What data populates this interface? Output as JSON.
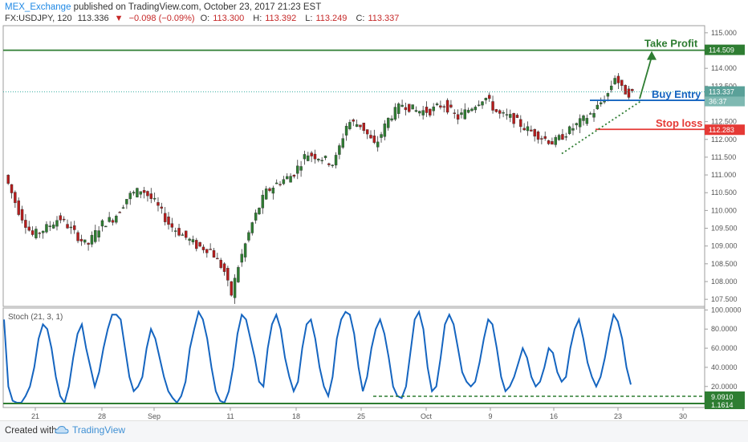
{
  "header": {
    "author": "MEX_Exchange",
    "published": "published on TradingView.com, October 23, 2017 21:23 EST",
    "symbol": "FX:USDJPY, 120",
    "last": "113.336",
    "change_arrow": "▼",
    "change": "−0.098 (−0.09%)",
    "o_label": "O:",
    "o": "113.300",
    "h_label": "H:",
    "h": "113.392",
    "l_label": "L:",
    "l": "113.249",
    "c_label": "C:",
    "c": "113.337"
  },
  "footer": {
    "created": "Created with",
    "brand": "TradingView",
    "logo_icon": "tradingview-cloud-icon"
  },
  "colors": {
    "up": "#26a69a",
    "down": "#ef5350",
    "candle_up": "#2e7d32",
    "candle_down": "#b71c1c",
    "green_line": "#2e7d32",
    "blue_line": "#1565c0",
    "red_line": "#e53935",
    "stoch": "#1565c0"
  },
  "chart_data": [
    {
      "type": "candlestick",
      "symbol": "FX:USDJPY",
      "interval": "120",
      "x_ticks": [
        "21",
        "28",
        "Sep",
        "11",
        "18",
        "25",
        "Oct",
        "9",
        "16",
        "23",
        "30"
      ],
      "y_ticks": [
        "115.000",
        "114.500",
        "114.000",
        "113.500",
        "113.000",
        "112.500",
        "112.000",
        "111.500",
        "111.000",
        "110.500",
        "110.000",
        "109.500",
        "109.000",
        "108.500",
        "108.000",
        "107.500"
      ],
      "ylim": [
        107.3,
        115.2
      ],
      "path_points": [
        [
          0,
          111.0
        ],
        [
          0.02,
          110.0
        ],
        [
          0.04,
          109.3
        ],
        [
          0.06,
          109.5
        ],
        [
          0.08,
          109.8
        ],
        [
          0.1,
          109.4
        ],
        [
          0.12,
          109.0
        ],
        [
          0.14,
          109.6
        ],
        [
          0.16,
          109.8
        ],
        [
          0.18,
          110.4
        ],
        [
          0.2,
          110.6
        ],
        [
          0.22,
          110.2
        ],
        [
          0.24,
          109.6
        ],
        [
          0.26,
          109.3
        ],
        [
          0.28,
          109.0
        ],
        [
          0.3,
          108.9
        ],
        [
          0.32,
          108.3
        ],
        [
          0.33,
          107.6
        ],
        [
          0.34,
          108.4
        ],
        [
          0.36,
          109.6
        ],
        [
          0.38,
          110.5
        ],
        [
          0.4,
          110.8
        ],
        [
          0.42,
          111.0
        ],
        [
          0.44,
          111.6
        ],
        [
          0.46,
          111.5
        ],
        [
          0.48,
          111.3
        ],
        [
          0.5,
          112.5
        ],
        [
          0.52,
          112.4
        ],
        [
          0.54,
          111.8
        ],
        [
          0.56,
          112.6
        ],
        [
          0.58,
          113.0
        ],
        [
          0.6,
          112.8
        ],
        [
          0.62,
          112.8
        ],
        [
          0.64,
          113.0
        ],
        [
          0.66,
          112.6
        ],
        [
          0.68,
          112.9
        ],
        [
          0.7,
          113.2
        ],
        [
          0.72,
          112.7
        ],
        [
          0.74,
          112.6
        ],
        [
          0.76,
          112.3
        ],
        [
          0.78,
          112.1
        ],
        [
          0.8,
          111.9
        ],
        [
          0.82,
          112.2
        ],
        [
          0.84,
          112.5
        ],
        [
          0.86,
          112.8
        ],
        [
          0.88,
          113.3
        ],
        [
          0.89,
          113.8
        ],
        [
          0.9,
          113.4
        ],
        [
          0.91,
          113.3
        ]
      ],
      "price_levels": [
        {
          "label": "Take Profit",
          "value": 114.509,
          "tag": "114.509"
        },
        {
          "label": "Buy Entry",
          "value": 113.1,
          "tag": "36:37"
        },
        {
          "label": "Stop loss",
          "value": 112.283,
          "tag": "112.283"
        }
      ],
      "current_price_tag": "113.337"
    },
    {
      "type": "line",
      "title": "Stoch (21, 3, 1)",
      "y_ticks": [
        "100.0000",
        "80.0000",
        "60.0000",
        "40.0000",
        "20.0000"
      ],
      "ylim": [
        -2,
        102
      ],
      "support_tags": [
        "9.0910",
        "1.1614"
      ],
      "series": [
        {
          "values": [
            90,
            20,
            5,
            3,
            3,
            10,
            20,
            40,
            70,
            85,
            80,
            60,
            30,
            10,
            3,
            20,
            50,
            75,
            85,
            60,
            40,
            20,
            35,
            60,
            80,
            95,
            95,
            90,
            60,
            30,
            15,
            20,
            30,
            60,
            80,
            70,
            50,
            30,
            15,
            8,
            3,
            10,
            25,
            60,
            80,
            98,
            90,
            70,
            40,
            15,
            5,
            3,
            15,
            40,
            75,
            95,
            90,
            70,
            50,
            25,
            20,
            60,
            85,
            95,
            80,
            50,
            30,
            15,
            25,
            60,
            85,
            90,
            70,
            40,
            20,
            10,
            30,
            70,
            90,
            98,
            95,
            75,
            40,
            15,
            30,
            60,
            80,
            90,
            75,
            50,
            20,
            10,
            8,
            20,
            55,
            90,
            98,
            80,
            40,
            15,
            20,
            50,
            85,
            95,
            85,
            60,
            35,
            25,
            20,
            25,
            45,
            70,
            90,
            85,
            60,
            30,
            15,
            20,
            30,
            45,
            60,
            50,
            30,
            20,
            25,
            40,
            60,
            55,
            35,
            25,
            30,
            60,
            80,
            90,
            70,
            45,
            30,
            20,
            30,
            50,
            75,
            95,
            88,
            70,
            40,
            22
          ]
        }
      ]
    }
  ]
}
